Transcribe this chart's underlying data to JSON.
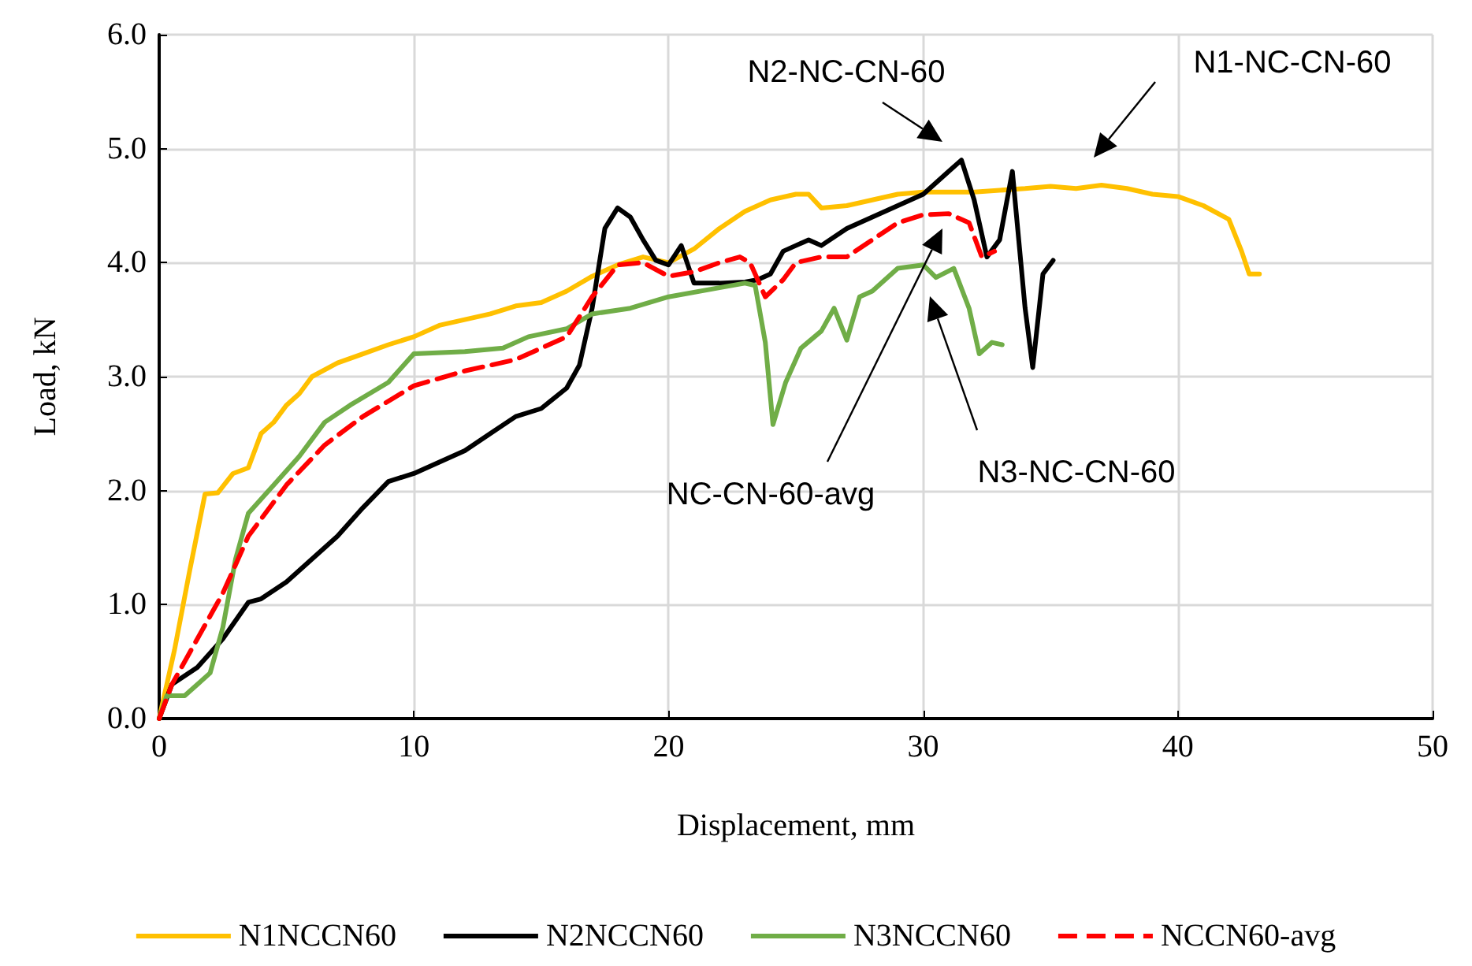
{
  "chart_data": {
    "type": "line",
    "xlabel": "Displacement, mm",
    "ylabel": "Load, kN",
    "xlim": [
      0,
      50
    ],
    "xticks": [
      0,
      10,
      20,
      30,
      40,
      50
    ],
    "ylim": [
      0,
      6
    ],
    "yticks": [
      {
        "value": 0,
        "label": "0.0"
      },
      {
        "value": 1,
        "label": "1.0"
      },
      {
        "value": 2,
        "label": "2.0"
      },
      {
        "value": 3,
        "label": "3.0"
      },
      {
        "value": 4,
        "label": "4.0"
      },
      {
        "value": 5,
        "label": "5.0"
      },
      {
        "value": 6,
        "label": "6.0"
      }
    ],
    "grid": true,
    "legend": "bottom",
    "marker": "none",
    "annotations": [
      "N2-NC-CN-60",
      "N1-NC-CN-60",
      "NC-CN-60-avg",
      "N3-NC-CN-60"
    ],
    "series": [
      {
        "name": "N1NCCN60",
        "color": "#ffc000",
        "line_style": "solid",
        "x": [
          0,
          0.6,
          1.2,
          1.8,
          2.3,
          2.9,
          3.5,
          4,
          4.5,
          5,
          5.5,
          6,
          7,
          8,
          9,
          10,
          11,
          12,
          13,
          14,
          15,
          16,
          17,
          18,
          19,
          20,
          21,
          22,
          23,
          24,
          25,
          25.5,
          26,
          27,
          28,
          29,
          30,
          32,
          34,
          35,
          36,
          37,
          38,
          39,
          40,
          41,
          42,
          42.5,
          42.8,
          43.2
        ],
        "values": [
          0,
          0.6,
          1.3,
          1.97,
          1.98,
          2.15,
          2.2,
          2.5,
          2.6,
          2.75,
          2.85,
          3.0,
          3.12,
          3.2,
          3.28,
          3.35,
          3.45,
          3.5,
          3.55,
          3.62,
          3.65,
          3.75,
          3.88,
          3.98,
          4.05,
          4.0,
          4.12,
          4.3,
          4.45,
          4.55,
          4.6,
          4.6,
          4.48,
          4.5,
          4.55,
          4.6,
          4.62,
          4.62,
          4.65,
          4.67,
          4.65,
          4.68,
          4.65,
          4.6,
          4.58,
          4.5,
          4.38,
          4.1,
          3.9,
          3.9
        ]
      },
      {
        "name": "N2NCCN60",
        "color": "#000000",
        "line_style": "solid",
        "x": [
          0,
          0.5,
          1.5,
          2.5,
          3.5,
          4,
          5,
          6,
          7,
          8,
          9,
          10,
          11,
          12,
          13,
          14,
          15,
          16,
          16.5,
          17,
          17.5,
          18,
          18.5,
          19,
          19.5,
          20,
          20.5,
          21,
          22,
          23,
          23.5,
          24,
          24.5,
          25,
          25.5,
          26,
          27,
          28,
          29,
          30,
          31,
          31.5,
          32,
          32.5,
          33,
          33.5,
          34,
          34.3,
          34.7,
          35.1
        ],
        "values": [
          0,
          0.3,
          0.45,
          0.7,
          1.02,
          1.05,
          1.2,
          1.4,
          1.6,
          1.85,
          2.08,
          2.15,
          2.25,
          2.35,
          2.5,
          2.65,
          2.72,
          2.9,
          3.1,
          3.6,
          4.3,
          4.48,
          4.4,
          4.2,
          4.02,
          3.98,
          4.15,
          3.82,
          3.82,
          3.83,
          3.85,
          3.9,
          4.1,
          4.15,
          4.2,
          4.15,
          4.3,
          4.4,
          4.5,
          4.6,
          4.8,
          4.9,
          4.55,
          4.05,
          4.2,
          4.8,
          3.6,
          3.08,
          3.9,
          4.02
        ]
      },
      {
        "name": "N3NCCN60",
        "color": "#70ad47",
        "line_style": "solid",
        "x": [
          0,
          0.3,
          1,
          2,
          2.5,
          3,
          3.5,
          4.5,
          5.5,
          6.5,
          7.5,
          9,
          10,
          12,
          13.5,
          14.5,
          16,
          17,
          18.5,
          20,
          22,
          23,
          23.4,
          23.8,
          24.1,
          24.6,
          25.2,
          26,
          26.5,
          27,
          27.5,
          28,
          29,
          30,
          30.5,
          31.2,
          31.8,
          32.2,
          32.7,
          33.1
        ],
        "values": [
          0,
          0.2,
          0.2,
          0.4,
          0.8,
          1.4,
          1.8,
          2.05,
          2.3,
          2.6,
          2.75,
          2.95,
          3.2,
          3.22,
          3.25,
          3.35,
          3.42,
          3.55,
          3.6,
          3.7,
          3.78,
          3.82,
          3.8,
          3.3,
          2.58,
          2.95,
          3.25,
          3.4,
          3.6,
          3.32,
          3.7,
          3.75,
          3.95,
          3.98,
          3.87,
          3.95,
          3.6,
          3.2,
          3.3,
          3.28
        ]
      },
      {
        "name": "NCCN60-avg",
        "color": "#ff0000",
        "line_style": "dashed",
        "x": [
          0,
          0.5,
          1.5,
          2.5,
          3.5,
          5,
          6.5,
          8,
          10,
          12,
          14,
          16,
          17,
          18,
          19,
          20,
          21,
          22,
          22.8,
          23.2,
          23.8,
          24.5,
          25,
          26,
          27,
          28,
          29,
          30,
          31,
          31.8,
          32.3,
          32.8
        ],
        "values": [
          0,
          0.3,
          0.7,
          1.1,
          1.6,
          2.05,
          2.4,
          2.65,
          2.92,
          3.05,
          3.15,
          3.35,
          3.7,
          3.98,
          4.0,
          3.88,
          3.92,
          4.0,
          4.05,
          4.0,
          3.7,
          3.85,
          4.0,
          4.05,
          4.05,
          4.2,
          4.35,
          4.42,
          4.43,
          4.35,
          4.05,
          4.1
        ]
      }
    ]
  }
}
